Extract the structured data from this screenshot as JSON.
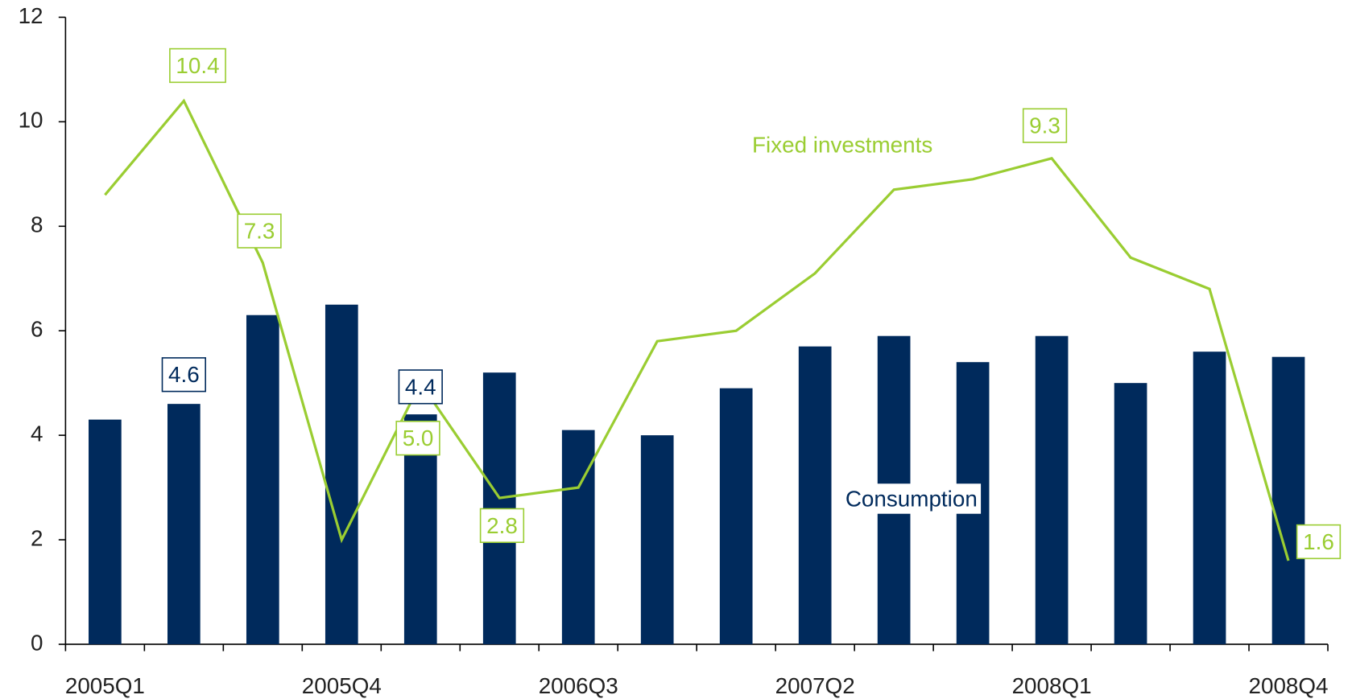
{
  "chart_data": {
    "type": "bar_line",
    "categories": [
      "2005Q1",
      null,
      null,
      "2005Q4",
      null,
      null,
      "2006Q3",
      null,
      null,
      "2007Q2",
      null,
      null,
      "2008Q1",
      null,
      null,
      "2008Q4"
    ],
    "series": [
      {
        "name": "Consumption",
        "type": "bar",
        "color": "#002a5c",
        "values": [
          4.3,
          4.6,
          6.3,
          6.5,
          4.4,
          5.2,
          4.1,
          4.0,
          4.9,
          5.7,
          5.9,
          5.4,
          5.9,
          5.0,
          5.6,
          5.5
        ],
        "value_labels": [
          null,
          "4.6",
          null,
          null,
          "4.4",
          null,
          null,
          null,
          null,
          null,
          null,
          null,
          null,
          null,
          null,
          null
        ]
      },
      {
        "name": "Fixed investments",
        "type": "line",
        "color": "#9acd32",
        "values": [
          8.6,
          10.4,
          7.3,
          2.0,
          5.0,
          2.8,
          3.0,
          5.8,
          6.0,
          7.1,
          8.7,
          8.9,
          9.3,
          7.4,
          6.8,
          1.6
        ],
        "value_labels": [
          null,
          "10.4",
          "7.3",
          null,
          "5.0",
          "2.8",
          null,
          null,
          null,
          null,
          null,
          null,
          "9.3",
          null,
          null,
          "1.6"
        ]
      }
    ],
    "ylim": [
      0,
      12
    ],
    "yticks": [
      0,
      2,
      4,
      6,
      8,
      10,
      12
    ],
    "grid": false
  }
}
